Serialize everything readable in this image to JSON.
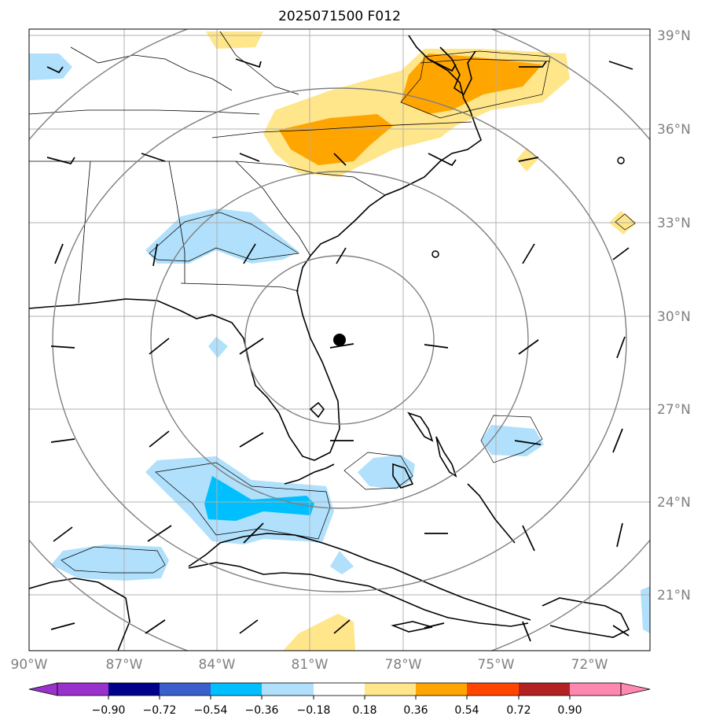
{
  "title": "2025071500 F012",
  "map": {
    "lat_labels": [
      "39°N",
      "36°N",
      "33°N",
      "30°N",
      "27°N",
      "24°N",
      "21°N"
    ],
    "lon_labels": [
      "90°W",
      "87°W",
      "84°W",
      "81°W",
      "78°W",
      "75°W",
      "72°W"
    ],
    "storm_center": {
      "lat": 29.2,
      "lon": -79.0
    }
  },
  "colorbar": {
    "labels": [
      "−0.90",
      "−0.72",
      "−0.54",
      "−0.36",
      "−0.18",
      "0.18",
      "0.36",
      "0.54",
      "0.72",
      "0.90"
    ],
    "colors": [
      "#9932cc",
      "#00008b",
      "#3a5fcd",
      "#00bfff",
      "#b0e0fb",
      "#ffffff",
      "#ffe68a",
      "#ffa500",
      "#ff4500",
      "#b22222",
      "#ff88b0"
    ]
  }
}
